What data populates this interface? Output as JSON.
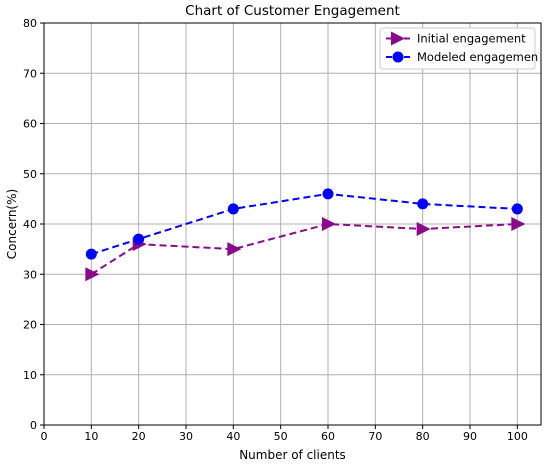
{
  "chart_data": {
    "type": "line",
    "title": "Chart of Customer Engagement",
    "xlabel": "Number of clients",
    "ylabel": "Concern(%)",
    "x": [
      10,
      20,
      40,
      60,
      80,
      100
    ],
    "xlim": [
      0,
      105
    ],
    "ylim": [
      0,
      80
    ],
    "xticks": [
      0,
      10,
      20,
      30,
      40,
      50,
      60,
      70,
      80,
      90,
      100
    ],
    "yticks": [
      0,
      10,
      20,
      30,
      40,
      50,
      60,
      70,
      80
    ],
    "grid": true,
    "legend_position": "top-right",
    "series": [
      {
        "name": "Initial engagement",
        "values": [
          30,
          36,
          35,
          40,
          39,
          40
        ],
        "color": "#8b0a8b",
        "marker": "triangle-right",
        "line_style": "dashed"
      },
      {
        "name": "Modeled engagemen",
        "values": [
          34,
          37,
          43,
          46,
          44,
          43
        ],
        "color": "#0000ff",
        "marker": "circle",
        "line_style": "dashed"
      }
    ]
  }
}
